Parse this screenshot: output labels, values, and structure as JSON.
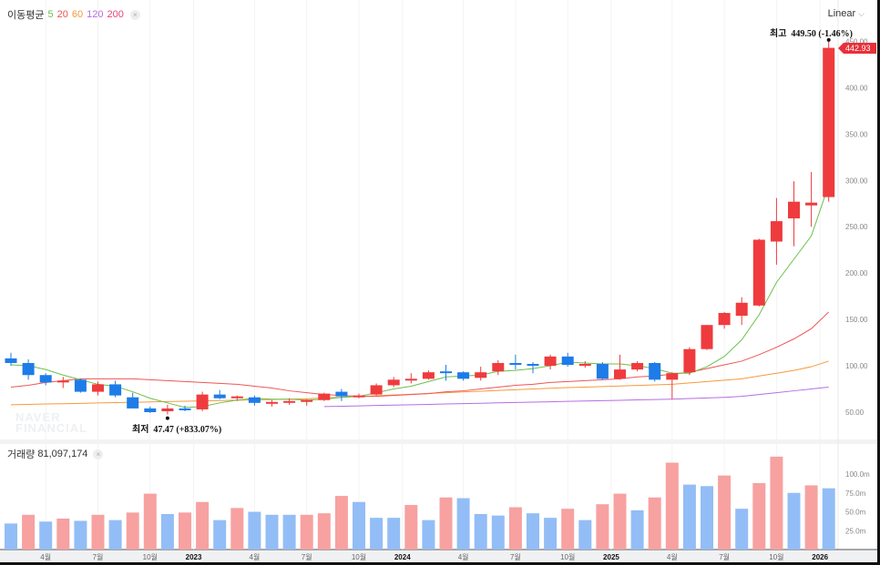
{
  "legend": {
    "label": "이동평균",
    "ma": [
      "5",
      "20",
      "60",
      "120",
      "200"
    ],
    "close": "×"
  },
  "scale_mode": {
    "label": "Linear",
    "chevron": "⌵"
  },
  "watermark": [
    "NAVER",
    "FINANCIAL"
  ],
  "annotations": {
    "high": {
      "label": "최고",
      "value": "449.50 (-1.46%)"
    },
    "low": {
      "label": "최저",
      "value": "47.47 (+833.07%)"
    },
    "last_price": "442.93"
  },
  "volume_legend": {
    "label": "거래량",
    "value": "81,097,174",
    "close": "×"
  },
  "colors": {
    "up": "#ef3b3d",
    "down": "#1d7ce8",
    "vol_up": "#f7a1a1",
    "vol_down": "#93bdf6",
    "ma5": "#6cc04a",
    "ma20": "#f05555",
    "ma60": "#f59a3c",
    "ma120": "#b56fe0"
  },
  "chart_data": [
    {
      "type": "candlestick",
      "title": "",
      "ylim": [
        50,
        450
      ],
      "y_ticks": [
        "450.00",
        "400.00",
        "350.00",
        "300.00",
        "250.00",
        "200.00",
        "150.00",
        "100.00",
        "50.00"
      ],
      "y_tick_values": [
        450,
        400,
        350,
        300,
        250,
        200,
        150,
        100,
        50
      ],
      "x_ticks": [
        {
          "index": 2,
          "label": "4월"
        },
        {
          "index": 5,
          "label": "7월"
        },
        {
          "index": 8,
          "label": "10월"
        },
        {
          "index": 10.5,
          "label": "2023",
          "bold": true
        },
        {
          "index": 14,
          "label": "4월"
        },
        {
          "index": 17,
          "label": "7월"
        },
        {
          "index": 20,
          "label": "10월"
        },
        {
          "index": 22.5,
          "label": "2024",
          "bold": true
        },
        {
          "index": 26,
          "label": "4월"
        },
        {
          "index": 29,
          "label": "7월"
        },
        {
          "index": 32,
          "label": "10월"
        },
        {
          "index": 34.5,
          "label": "2025",
          "bold": true
        },
        {
          "index": 38,
          "label": "4월"
        },
        {
          "index": 41,
          "label": "7월"
        },
        {
          "index": 44,
          "label": "10월"
        },
        {
          "index": 46.5,
          "label": "2026",
          "bold": true
        }
      ],
      "ohlc": [
        [
          108,
          114,
          100,
          103
        ],
        [
          103,
          107,
          85,
          90
        ],
        [
          90,
          92,
          79,
          82
        ],
        [
          83,
          88,
          76,
          84
        ],
        [
          85,
          86,
          71,
          72
        ],
        [
          72,
          83,
          68,
          80
        ],
        [
          80,
          84,
          66,
          68
        ],
        [
          66,
          71,
          54,
          54
        ],
        [
          54,
          56,
          49,
          50
        ],
        [
          51,
          58,
          47.47,
          54
        ],
        [
          54,
          57,
          51,
          52
        ],
        [
          53,
          72,
          51,
          69
        ],
        [
          69,
          74,
          64,
          65
        ],
        [
          65,
          68,
          62,
          67
        ],
        [
          66,
          68,
          57,
          60
        ],
        [
          60,
          63,
          56,
          61
        ],
        [
          61,
          65,
          58,
          62
        ],
        [
          62,
          64,
          57,
          63
        ],
        [
          63,
          71,
          62,
          70
        ],
        [
          72,
          75,
          62,
          67
        ],
        [
          66,
          70,
          65,
          68
        ],
        [
          69,
          81,
          68,
          79
        ],
        [
          79,
          88,
          77,
          85
        ],
        [
          85,
          92,
          81,
          86
        ],
        [
          86,
          95,
          85,
          93
        ],
        [
          94,
          101,
          84,
          93
        ],
        [
          93,
          94,
          84,
          86
        ],
        [
          87,
          99,
          84,
          93
        ],
        [
          94,
          106,
          90,
          103
        ],
        [
          103,
          112,
          96,
          102
        ],
        [
          102,
          104,
          92,
          100
        ],
        [
          100,
          112,
          96,
          110
        ],
        [
          110,
          114,
          99,
          101
        ],
        [
          100,
          105,
          98,
          102
        ],
        [
          102,
          104,
          85,
          86
        ],
        [
          86,
          112,
          85,
          96
        ],
        [
          96,
          105,
          94,
          103
        ],
        [
          103,
          104,
          83,
          85
        ],
        [
          85,
          93,
          64,
          92
        ],
        [
          93,
          120,
          90,
          118
        ],
        [
          118,
          144,
          117,
          144
        ],
        [
          144,
          158,
          140,
          157
        ],
        [
          154,
          174,
          144,
          168
        ],
        [
          165,
          237,
          164,
          236
        ],
        [
          234,
          281,
          209,
          256
        ],
        [
          259,
          299,
          229,
          277
        ],
        [
          273,
          309,
          250,
          276
        ],
        [
          282,
          449.5,
          277,
          442.93
        ]
      ],
      "moving_averages": {
        "ma5": [
          101,
          100,
          96,
          90,
          85,
          80,
          78,
          72,
          65,
          60,
          55,
          56,
          60,
          63,
          65,
          64,
          64,
          63,
          64,
          66,
          67,
          71,
          75,
          78,
          83,
          88,
          89,
          90,
          94,
          95,
          97,
          100,
          104,
          103,
          102,
          102,
          100,
          97,
          92,
          92,
          99,
          110,
          128,
          155,
          190,
          215,
          240,
          295
        ],
        "ma20": [
          77,
          79,
          82,
          84,
          86,
          86,
          86,
          86,
          85,
          84,
          83,
          82,
          81,
          80,
          78,
          76,
          73,
          71,
          69,
          68,
          67,
          67,
          68,
          69,
          70,
          72,
          73,
          75,
          77,
          79,
          80,
          82,
          83,
          84,
          85,
          86,
          88,
          89,
          91,
          93,
          97,
          101,
          105,
          112,
          120,
          129,
          140,
          158
        ],
        "ma60": [
          58,
          58.4,
          58.8,
          59.1,
          59.5,
          59.9,
          60.3,
          60.6,
          61,
          61.4,
          61.8,
          62.1,
          62.5,
          62.9,
          63.2,
          63.6,
          64,
          64.5,
          65.3,
          66.1,
          66.9,
          67.7,
          68.5,
          69.3,
          70.2,
          71,
          71.8,
          72.6,
          73.4,
          74.2,
          75,
          75.8,
          76.5,
          77,
          77.6,
          78.2,
          78.8,
          79.4,
          80,
          81.5,
          83,
          84.5,
          86,
          89,
          92,
          95,
          99,
          105
        ],
        "ma120": [
          null,
          null,
          null,
          null,
          null,
          null,
          null,
          null,
          null,
          null,
          null,
          null,
          null,
          null,
          null,
          null,
          null,
          null,
          56,
          56.4,
          56.8,
          57.2,
          57.6,
          58,
          58.4,
          58.8,
          59.2,
          59.6,
          60,
          60.4,
          60.8,
          61.2,
          61.6,
          62,
          62.4,
          62.8,
          63.2,
          63.6,
          64,
          64.7,
          65.3,
          66,
          67,
          69,
          71,
          73,
          75,
          77
        ]
      }
    },
    {
      "type": "bar",
      "title": "거래량",
      "ylabel": "",
      "ylim": [
        0,
        125
      ],
      "y_ticks": [
        "100.0m",
        "75.0m",
        "50.0m",
        "25.0m"
      ],
      "y_tick_values": [
        100,
        75,
        50,
        25
      ],
      "values": [
        34.5,
        46,
        37,
        41,
        38,
        46,
        39,
        49,
        74,
        47,
        49,
        63,
        39,
        55,
        50,
        46,
        46,
        46,
        48,
        71,
        63,
        42,
        42,
        59,
        39,
        69,
        68,
        47,
        45,
        56,
        48,
        42,
        54,
        39,
        60,
        74,
        52,
        69,
        115,
        86,
        84,
        98,
        54,
        88,
        123,
        75,
        85,
        81.1
      ],
      "direction": [
        "d",
        "u",
        "d",
        "u",
        "d",
        "u",
        "d",
        "u",
        "u",
        "d",
        "u",
        "u",
        "d",
        "u",
        "d",
        "d",
        "d",
        "u",
        "u",
        "u",
        "d",
        "d",
        "d",
        "u",
        "d",
        "u",
        "d",
        "d",
        "d",
        "u",
        "d",
        "d",
        "u",
        "d",
        "u",
        "u",
        "d",
        "u",
        "u",
        "d",
        "d",
        "u",
        "d",
        "u",
        "u",
        "d",
        "u",
        "d"
      ]
    }
  ]
}
